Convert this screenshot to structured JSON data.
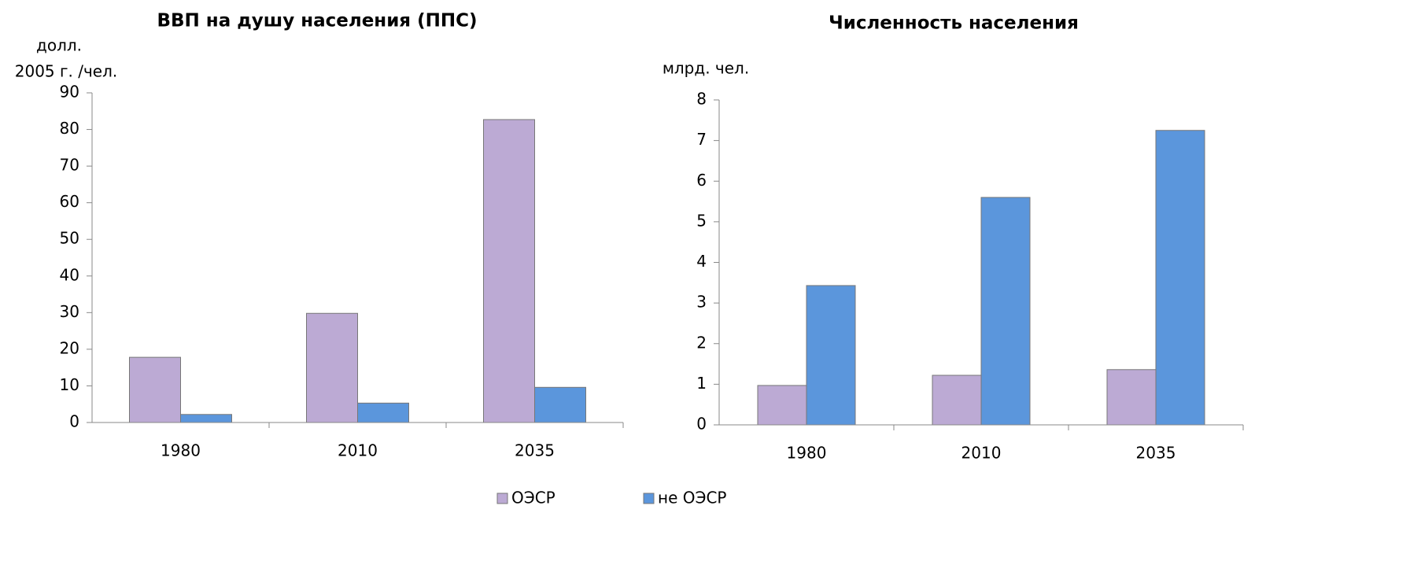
{
  "chart_data": [
    {
      "type": "bar",
      "title": "ВВП на душу населения (ППС)",
      "ylabel": [
        "долл.",
        "2005 г. /чел."
      ],
      "categories": [
        "1980",
        "2010",
        "2035"
      ],
      "series": [
        {
          "name": "ОЭСР",
          "color": "#bcaad4",
          "values": [
            17.8,
            29.8,
            82.7
          ]
        },
        {
          "name": "не ОЭСР",
          "color": "#5b96dc",
          "values": [
            2.2,
            5.3,
            9.6
          ]
        }
      ],
      "ylim": [
        0,
        90
      ],
      "yticks": [
        0,
        10,
        20,
        30,
        40,
        50,
        60,
        70,
        80,
        90
      ],
      "legend": "bottom"
    },
    {
      "type": "bar",
      "title": "Численность населения",
      "ylabel": [
        "млрд. чел."
      ],
      "categories": [
        "1980",
        "2010",
        "2035"
      ],
      "series": [
        {
          "name": "ОЭСР",
          "color": "#bcaad4",
          "values": [
            0.97,
            1.22,
            1.36
          ]
        },
        {
          "name": "не ОЭСР",
          "color": "#5b96dc",
          "values": [
            3.43,
            5.6,
            7.25
          ]
        }
      ],
      "ylim": [
        0,
        8
      ],
      "yticks": [
        0,
        1,
        2,
        3,
        4,
        5,
        6,
        7,
        8
      ]
    }
  ]
}
